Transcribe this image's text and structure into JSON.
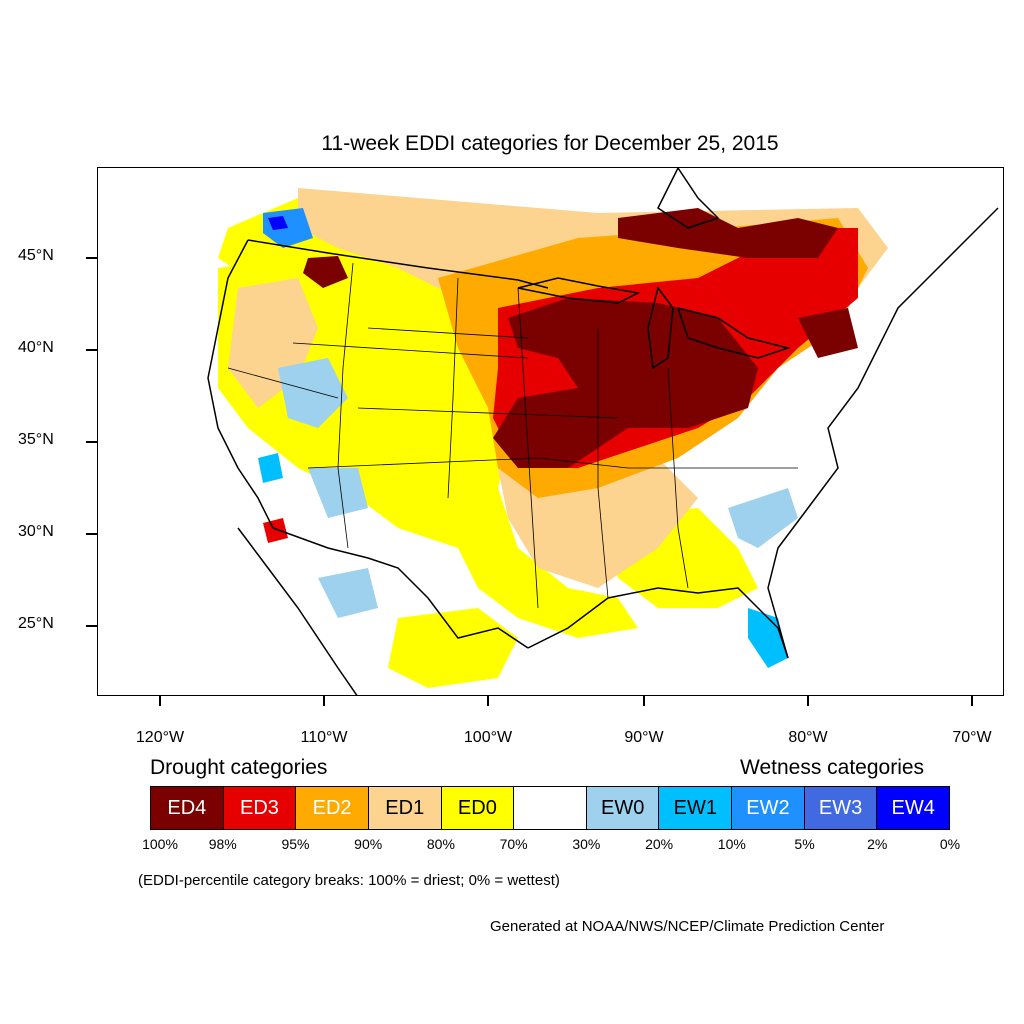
{
  "title": "11-week EDDI categories for December 25, 2015",
  "lat_labels": [
    "45°N",
    "40°N",
    "35°N",
    "30°N",
    "25°N"
  ],
  "lon_labels": [
    "120°W",
    "110°W",
    "100°W",
    "90°W",
    "80°W",
    "70°W"
  ],
  "legend": {
    "drought_heading": "Drought categories",
    "wetness_heading": "Wetness categories",
    "categories": [
      {
        "label": "ED4",
        "color": "#7b0000",
        "text_color": "#ffffff"
      },
      {
        "label": "ED3",
        "color": "#e60000",
        "text_color": "#ffffff"
      },
      {
        "label": "ED2",
        "color": "#ffaa00",
        "text_color": "#ffffff"
      },
      {
        "label": "ED1",
        "color": "#fcd38f",
        "text_color": "#000000"
      },
      {
        "label": "ED0",
        "color": "#ffff00",
        "text_color": "#000000"
      },
      {
        "label": "",
        "color": "#ffffff",
        "text_color": "#000000"
      },
      {
        "label": "EW0",
        "color": "#9dd1ee",
        "text_color": "#000000"
      },
      {
        "label": "EW1",
        "color": "#00bfff",
        "text_color": "#000000"
      },
      {
        "label": "EW2",
        "color": "#1e90ff",
        "text_color": "#ffffff"
      },
      {
        "label": "EW3",
        "color": "#4169e1",
        "text_color": "#ffffff"
      },
      {
        "label": "EW4",
        "color": "#0000ff",
        "text_color": "#ffffff"
      }
    ],
    "percentiles": [
      "100%",
      "98%",
      "95%",
      "90%",
      "80%",
      "70%",
      "30%",
      "20%",
      "10%",
      "5%",
      "2%",
      "0%"
    ]
  },
  "note": "(EDDI-percentile category breaks: 100% = driest; 0% = wettest)",
  "credit": "Generated at NOAA/NWS/NCEP/Climate Prediction Center"
}
